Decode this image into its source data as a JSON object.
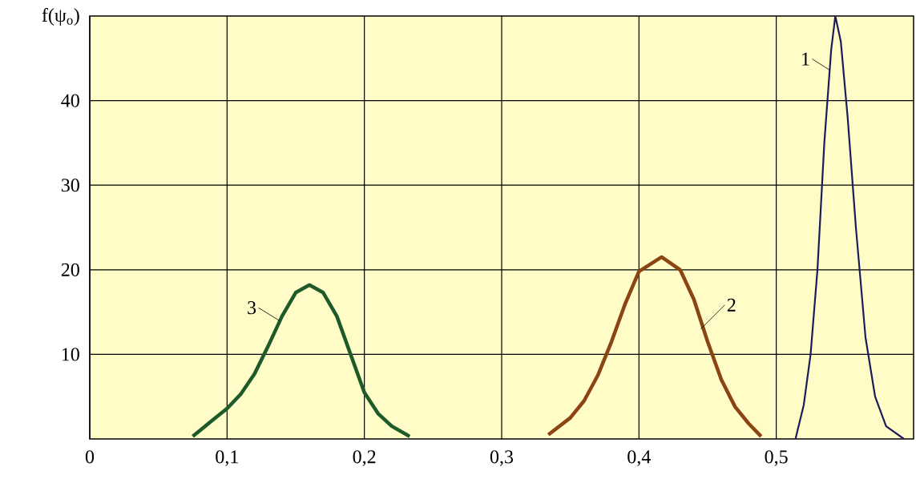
{
  "chart_data": {
    "type": "line",
    "ylabel": "f(ψ$_{o}$)",
    "xlim": [
      0,
      0.6
    ],
    "ylim": [
      0,
      50
    ],
    "xticks": [
      {
        "value": 0,
        "label": "0"
      },
      {
        "value": 0.1,
        "label": "0,1"
      },
      {
        "value": 0.2,
        "label": "0,2"
      },
      {
        "value": 0.3,
        "label": "0,3"
      },
      {
        "value": 0.4,
        "label": "0,4"
      },
      {
        "value": 0.5,
        "label": "0,5"
      }
    ],
    "yticks": [
      10,
      20,
      30,
      40
    ],
    "grid": true,
    "marker": "none",
    "line_style": "solid",
    "series": [
      {
        "color": "#1c1c5c",
        "x": [
          0.514,
          0.52,
          0.525,
          0.53,
          0.535,
          0.54,
          0.543,
          0.547,
          0.552,
          0.558,
          0.565,
          0.572,
          0.58,
          0.593
        ],
        "values": [
          0,
          4,
          10,
          20,
          35,
          46,
          50,
          47,
          38,
          25,
          12,
          5,
          1.5,
          0
        ]
      },
      {
        "color": "#8b4513",
        "x": [
          0.334,
          0.35,
          0.36,
          0.37,
          0.38,
          0.39,
          0.4,
          0.4165,
          0.43,
          0.44,
          0.45,
          0.46,
          0.47,
          0.48,
          0.489
        ],
        "values": [
          0.5,
          2.5,
          4.5,
          7.5,
          11.5,
          16,
          19.8,
          21.5,
          20,
          16.5,
          11.5,
          7,
          3.8,
          1.8,
          0.3
        ]
      },
      {
        "color": "#1f5a2a",
        "x": [
          0.075,
          0.09,
          0.1,
          0.11,
          0.12,
          0.13,
          0.14,
          0.15,
          0.16,
          0.17,
          0.18,
          0.19,
          0.2,
          0.21,
          0.22,
          0.233
        ],
        "values": [
          0.3,
          2.3,
          3.6,
          5.3,
          7.7,
          11,
          14.5,
          17.3,
          18.2,
          17.3,
          14.5,
          10,
          5.5,
          3,
          1.5,
          0.3
        ]
      }
    ],
    "annotations": [
      {
        "text": "1",
        "x": 0.539,
        "y": 43.6
      },
      {
        "text": "2",
        "x": 0.445,
        "y": 13
      },
      {
        "text": "3",
        "x": 0.138,
        "y": 14
      }
    ]
  }
}
